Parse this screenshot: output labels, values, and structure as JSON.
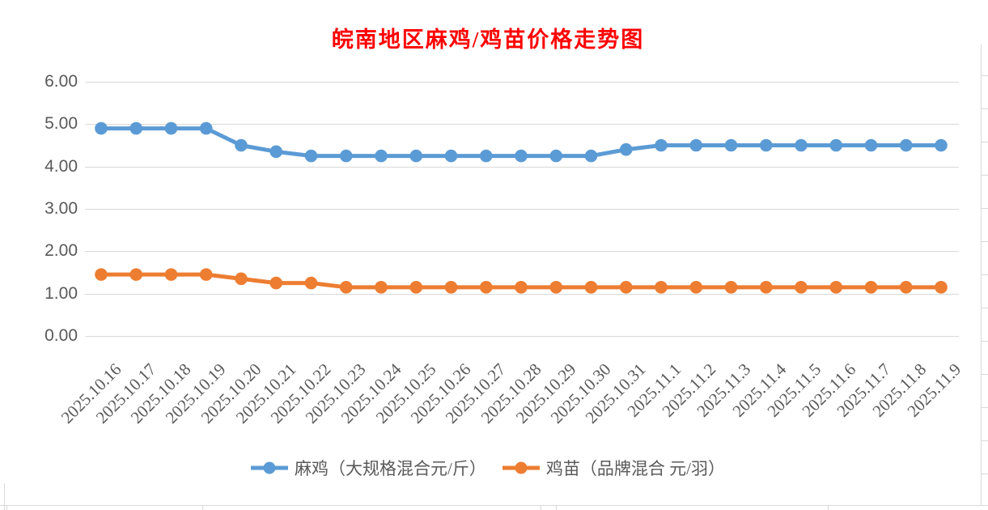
{
  "chart_data": {
    "type": "line",
    "title": "皖南地区麻鸡/鸡苗价格走势图",
    "title_color": "#FF0000",
    "categories": [
      "2025.10.16",
      "2025.10.17",
      "2025.10.18",
      "2025.10.19",
      "2025.10.20",
      "2025.10.21",
      "2025.10.22",
      "2025.10.23",
      "2025.10.24",
      "2025.10.25",
      "2025.10.26",
      "2025.10.27",
      "2025.10.28",
      "2025.10.29",
      "2025.10.30",
      "2025.10.31",
      "2025.11.1",
      "2025.11.2",
      "2025.11.3",
      "2025.11.4",
      "2025.11.5",
      "2025.11.6",
      "2025.11.7",
      "2025.11.8",
      "2025.11.9"
    ],
    "series": [
      {
        "name": "麻鸡（大规格混合元/斤）",
        "color": "#5B9BD5",
        "values": [
          4.9,
          4.9,
          4.9,
          4.9,
          4.5,
          4.35,
          4.25,
          4.25,
          4.25,
          4.25,
          4.25,
          4.25,
          4.25,
          4.25,
          4.25,
          4.4,
          4.5,
          4.5,
          4.5,
          4.5,
          4.5,
          4.5,
          4.5,
          4.5,
          4.5
        ]
      },
      {
        "name": "鸡苗（品牌混合 元/羽）",
        "color": "#ED7D31",
        "values": [
          1.45,
          1.45,
          1.45,
          1.45,
          1.35,
          1.25,
          1.25,
          1.15,
          1.15,
          1.15,
          1.15,
          1.15,
          1.15,
          1.15,
          1.15,
          1.15,
          1.15,
          1.15,
          1.15,
          1.15,
          1.15,
          1.15,
          1.15,
          1.15,
          1.15
        ]
      }
    ],
    "ylim": [
      0,
      6
    ],
    "ytick_labels": [
      "0.00",
      "1.00",
      "2.00",
      "3.00",
      "4.00",
      "5.00",
      "6.00"
    ],
    "grid": true,
    "gridline_color": "#D9D9D9",
    "axis_label_color": "#595959",
    "legend_position": "bottom",
    "xlabel": "",
    "ylabel": ""
  }
}
